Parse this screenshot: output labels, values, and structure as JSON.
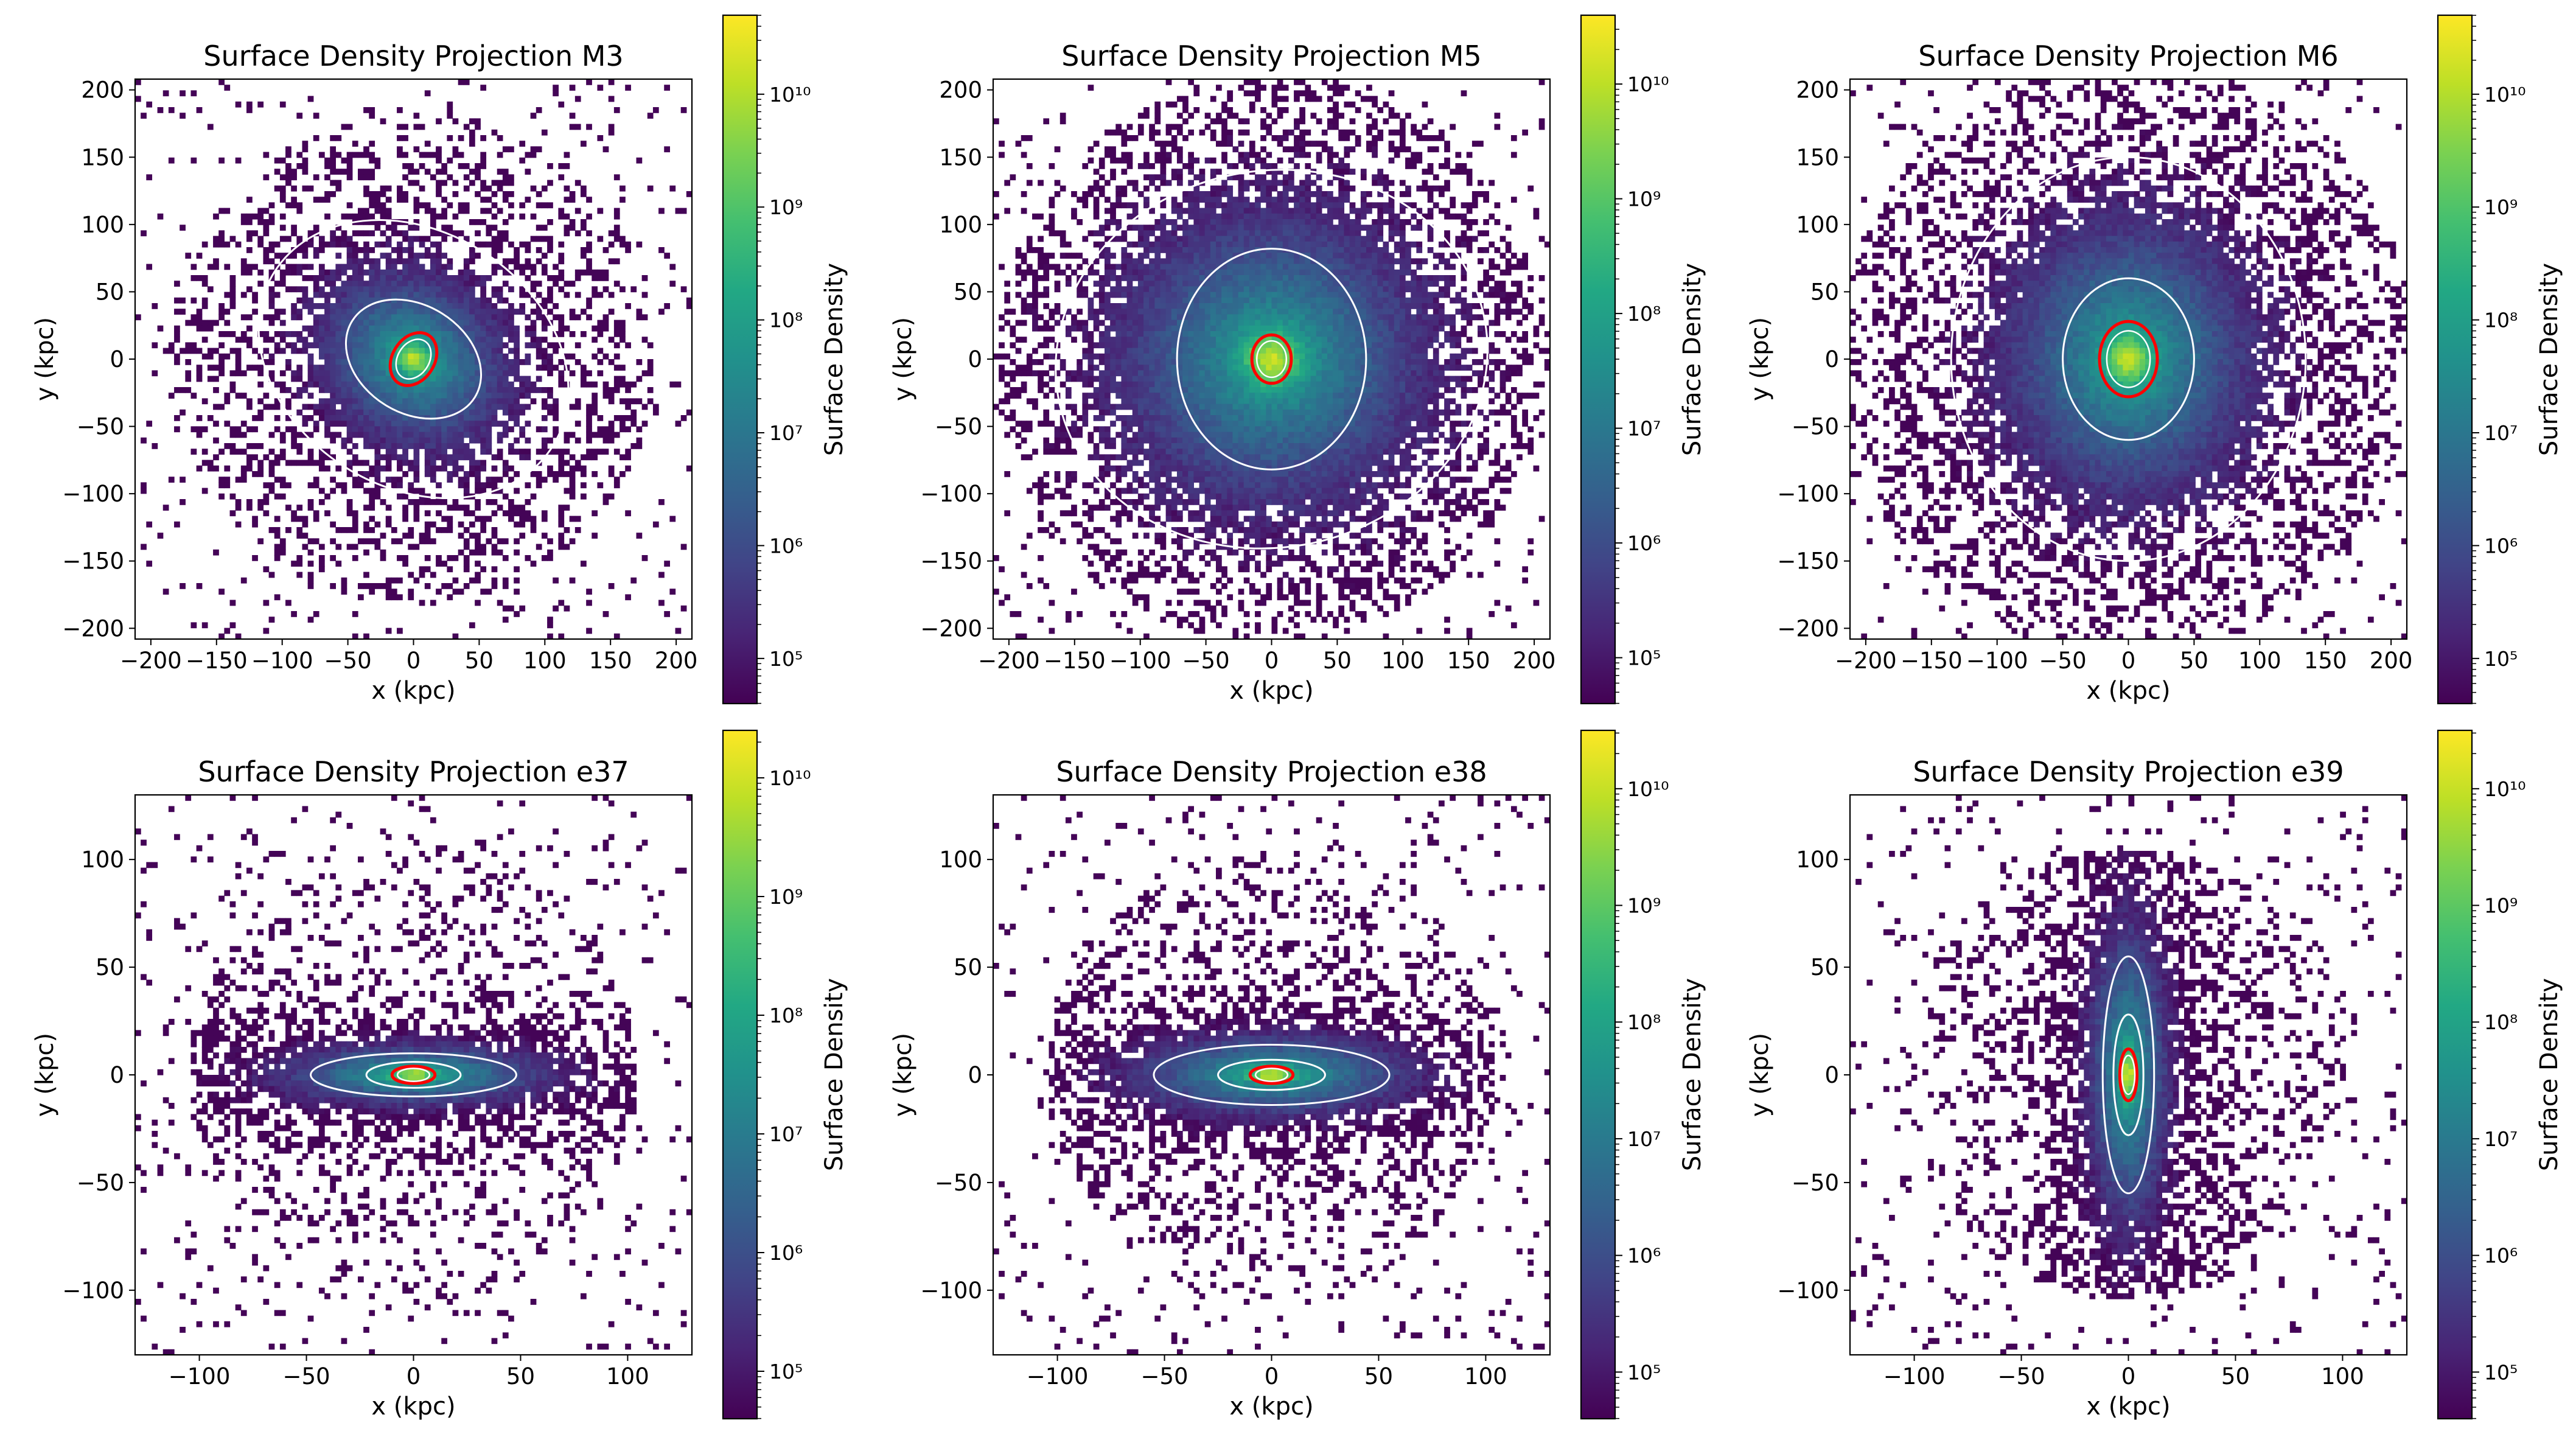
{
  "colorbar_colors": [
    "#440154",
    "#482475",
    "#414487",
    "#355f8d",
    "#2a788e",
    "#21918c",
    "#22a884",
    "#44bf70",
    "#7ad151",
    "#bddf26",
    "#fde725"
  ],
  "contour_colors": {
    "outer": "#ffffff",
    "inner": "#ff0000"
  },
  "chart_data": [
    {
      "type": "heatmap",
      "id": "M3",
      "title": "Surface Density Projection M3",
      "xlabel": "x (kpc)",
      "ylabel": "y (kpc)",
      "xlim": [
        -212,
        212
      ],
      "ylim": [
        -208,
        208
      ],
      "xticks": [
        -200,
        -150,
        -100,
        -50,
        0,
        50,
        100,
        150,
        200
      ],
      "yticks": [
        -200,
        -150,
        -100,
        -50,
        0,
        50,
        100,
        150,
        200
      ],
      "colorbar": {
        "label": "Surface Density",
        "log_range": [
          4.6,
          10.7
        ],
        "tick_exponents": [
          5,
          6,
          7,
          8,
          9,
          10
        ],
        "tick_labels": [
          "10⁵",
          "10⁶",
          "10⁷",
          "10⁸",
          "10⁹",
          "10¹⁰"
        ]
      },
      "distribution": {
        "sigma_x": 48,
        "sigma_y": 40,
        "rotation_deg": -32,
        "extent": 175,
        "sparsity": 0.55
      },
      "contours": [
        {
          "level": "outer",
          "rx": 125,
          "ry": 95,
          "rotation_deg": -32
        },
        {
          "level": "mid",
          "rx": 55,
          "ry": 40,
          "rotation_deg": -32
        },
        {
          "level": "core",
          "rx": 16,
          "ry": 21,
          "rotation_deg": -32
        }
      ]
    },
    {
      "type": "heatmap",
      "id": "M5",
      "title": "Surface Density Projection M5",
      "xlabel": "x (kpc)",
      "ylabel": "y (kpc)",
      "xlim": [
        -212,
        212
      ],
      "ylim": [
        -208,
        208
      ],
      "xticks": [
        -200,
        -150,
        -100,
        -50,
        0,
        50,
        100,
        150,
        200
      ],
      "yticks": [
        -200,
        -150,
        -100,
        -50,
        0,
        50,
        100,
        150,
        200
      ],
      "colorbar": {
        "label": "Surface Density",
        "log_range": [
          4.6,
          10.6
        ],
        "tick_exponents": [
          5,
          6,
          7,
          8,
          9,
          10
        ],
        "tick_labels": [
          "10⁵",
          "10⁶",
          "10⁷",
          "10⁸",
          "10⁹",
          "10¹⁰"
        ]
      },
      "distribution": {
        "sigma_x": 75,
        "sigma_y": 70,
        "rotation_deg": 0,
        "extent": 200,
        "sparsity": 0.6
      },
      "contours": [
        {
          "level": "outer",
          "rx": 165,
          "ry": 140,
          "rotation_deg": 10
        },
        {
          "level": "mid",
          "rx": 72,
          "ry": 82,
          "rotation_deg": 0
        },
        {
          "level": "core",
          "rx": 15,
          "ry": 18,
          "rotation_deg": 0
        }
      ]
    },
    {
      "type": "heatmap",
      "id": "M6",
      "title": "Surface Density Projection M6",
      "xlabel": "x (kpc)",
      "ylabel": "y (kpc)",
      "xlim": [
        -212,
        212
      ],
      "ylim": [
        -208,
        208
      ],
      "xticks": [
        -200,
        -150,
        -100,
        -50,
        0,
        50,
        100,
        150,
        200
      ],
      "yticks": [
        -200,
        -150,
        -100,
        -50,
        0,
        50,
        100,
        150,
        200
      ],
      "colorbar": {
        "label": "Surface Density",
        "log_range": [
          4.6,
          10.7
        ],
        "tick_exponents": [
          5,
          6,
          7,
          8,
          9,
          10
        ],
        "tick_labels": [
          "10⁵",
          "10⁶",
          "10⁷",
          "10⁸",
          "10⁹",
          "10¹⁰"
        ]
      },
      "distribution": {
        "sigma_x": 62,
        "sigma_y": 68,
        "rotation_deg": 0,
        "extent": 210,
        "sparsity": 0.6
      },
      "contours": [
        {
          "level": "outer",
          "rx": 135,
          "ry": 150,
          "rotation_deg": 0
        },
        {
          "level": "mid",
          "rx": 50,
          "ry": 60,
          "rotation_deg": 0
        },
        {
          "level": "core",
          "rx": 22,
          "ry": 28,
          "rotation_deg": 0
        }
      ]
    },
    {
      "type": "heatmap",
      "id": "e37",
      "title": "Surface Density Projection e37",
      "xlabel": "x (kpc)",
      "ylabel": "y (kpc)",
      "xlim": [
        -130,
        130
      ],
      "ylim": [
        -130,
        130
      ],
      "xticks": [
        -100,
        -50,
        0,
        50,
        100
      ],
      "yticks": [
        -100,
        -50,
        0,
        50,
        100
      ],
      "colorbar": {
        "label": "Surface Density",
        "log_range": [
          4.6,
          10.4
        ],
        "tick_exponents": [
          5,
          6,
          7,
          8,
          9,
          10
        ],
        "tick_labels": [
          "10⁵",
          "10⁶",
          "10⁷",
          "10⁸",
          "10⁹",
          "10¹⁰"
        ]
      },
      "distribution": {
        "sigma_x": 40,
        "sigma_y": 9,
        "rotation_deg": 0,
        "extent": 100,
        "sparsity": 0.3
      },
      "contours": [
        {
          "level": "outer",
          "rx": 48,
          "ry": 10,
          "rotation_deg": 0
        },
        {
          "level": "mid",
          "rx": 22,
          "ry": 6,
          "rotation_deg": 0
        },
        {
          "level": "core",
          "rx": 10,
          "ry": 4,
          "rotation_deg": 0
        }
      ]
    },
    {
      "type": "heatmap",
      "id": "e38",
      "title": "Surface Density Projection e38",
      "xlabel": "x (kpc)",
      "ylabel": "y (kpc)",
      "xlim": [
        -130,
        130
      ],
      "ylim": [
        -130,
        130
      ],
      "xticks": [
        -100,
        -50,
        0,
        50,
        100
      ],
      "yticks": [
        -100,
        -50,
        0,
        50,
        100
      ],
      "colorbar": {
        "label": "Surface Density",
        "log_range": [
          4.6,
          10.5
        ],
        "tick_exponents": [
          5,
          6,
          7,
          8,
          9,
          10
        ],
        "tick_labels": [
          "10⁵",
          "10⁶",
          "10⁷",
          "10⁸",
          "10⁹",
          "10¹⁰"
        ]
      },
      "distribution": {
        "sigma_x": 42,
        "sigma_y": 12,
        "rotation_deg": 0,
        "extent": 100,
        "sparsity": 0.35
      },
      "contours": [
        {
          "level": "outer",
          "rx": 55,
          "ry": 14,
          "rotation_deg": 0
        },
        {
          "level": "mid",
          "rx": 25,
          "ry": 7,
          "rotation_deg": 0
        },
        {
          "level": "core",
          "rx": 10,
          "ry": 4,
          "rotation_deg": 0
        }
      ]
    },
    {
      "type": "heatmap",
      "id": "e39",
      "title": "Surface Density Projection e39",
      "xlabel": "x (kpc)",
      "ylabel": "y (kpc)",
      "xlim": [
        -130,
        130
      ],
      "ylim": [
        -130,
        130
      ],
      "xticks": [
        -100,
        -50,
        0,
        50,
        100
      ],
      "yticks": [
        -100,
        -50,
        0,
        50,
        100
      ],
      "colorbar": {
        "label": "Surface Density",
        "log_range": [
          4.6,
          10.5
        ],
        "tick_exponents": [
          5,
          6,
          7,
          8,
          9,
          10
        ],
        "tick_labels": [
          "10⁵",
          "10⁶",
          "10⁷",
          "10⁸",
          "10⁹",
          "10¹⁰"
        ]
      },
      "distribution": {
        "sigma_x": 12,
        "sigma_y": 45,
        "rotation_deg": 0,
        "extent": 100,
        "sparsity": 0.35
      },
      "contours": [
        {
          "level": "outer",
          "rx": 12,
          "ry": 55,
          "rotation_deg": 0
        },
        {
          "level": "mid",
          "rx": 7,
          "ry": 28,
          "rotation_deg": 0
        },
        {
          "level": "core",
          "rx": 4,
          "ry": 12,
          "rotation_deg": 0
        }
      ]
    }
  ]
}
